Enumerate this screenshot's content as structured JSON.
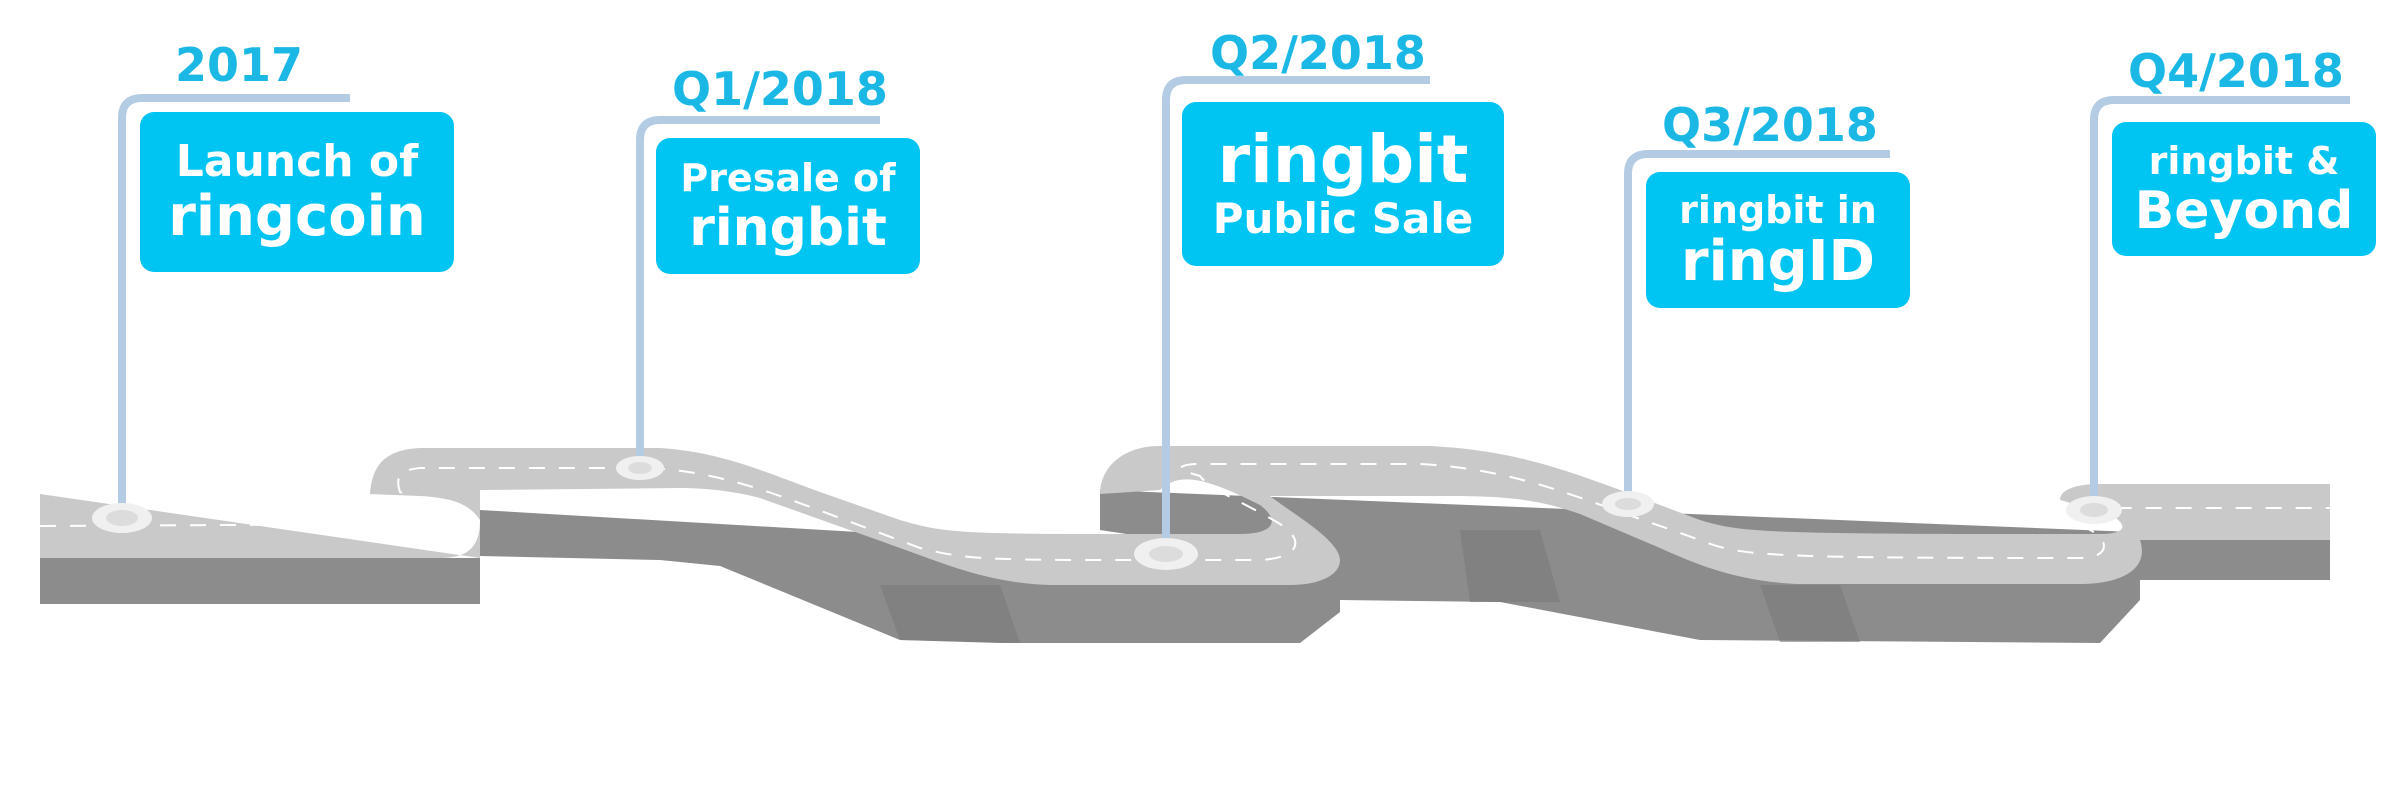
{
  "colors": {
    "accent": "#00c4f2",
    "year_text": "#1bb8e6",
    "pole": "#b3cce4",
    "road_top": "#c8c8c8",
    "road_side": "#8a8a8a",
    "lane_marking": "#ffffff"
  },
  "milestones": [
    {
      "year": "2017",
      "line1": "Launch of",
      "line2": "ringcoin"
    },
    {
      "year": "Q1/2018",
      "line1": "Presale of",
      "line2": "ringbit"
    },
    {
      "year": "Q2/2018",
      "line1": "ringbit",
      "line2": "Public Sale"
    },
    {
      "year": "Q3/2018",
      "line1": "ringbit in",
      "line2": "ringID"
    },
    {
      "year": "Q4/2018",
      "line1": "ringbit &",
      "line2": "Beyond"
    }
  ]
}
